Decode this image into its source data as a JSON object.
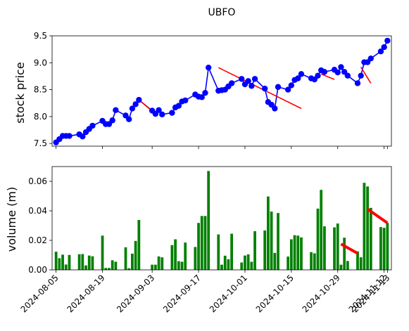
{
  "chart_data": [
    {
      "type": "line",
      "title": "UBFO",
      "ylabel": "stock price",
      "ylabel_color": "#0000ff",
      "ylim": [
        7.45,
        9.5
      ],
      "yticks": [
        7.5,
        8.0,
        8.5,
        9.0,
        9.5
      ],
      "ytick_labels": [
        "7.5",
        "8.0",
        "8.5",
        "9.0",
        "9.5"
      ],
      "grid": false,
      "x": [
        "2024-08-05",
        "2024-08-06",
        "2024-08-07",
        "2024-08-08",
        "2024-08-09",
        "2024-08-12",
        "2024-08-13",
        "2024-08-14",
        "2024-08-15",
        "2024-08-16",
        "2024-08-19",
        "2024-08-20",
        "2024-08-21",
        "2024-08-22",
        "2024-08-23",
        "2024-08-26",
        "2024-08-27",
        "2024-08-28",
        "2024-08-29",
        "2024-08-30",
        "2024-09-03",
        "2024-09-04",
        "2024-09-05",
        "2024-09-06",
        "2024-09-09",
        "2024-09-10",
        "2024-09-11",
        "2024-09-12",
        "2024-09-13",
        "2024-09-16",
        "2024-09-17",
        "2024-09-18",
        "2024-09-19",
        "2024-09-20",
        "2024-09-23",
        "2024-09-24",
        "2024-09-25",
        "2024-09-26",
        "2024-09-27",
        "2024-09-30",
        "2024-10-01",
        "2024-10-02",
        "2024-10-03",
        "2024-10-04",
        "2024-10-07",
        "2024-10-08",
        "2024-10-09",
        "2024-10-10",
        "2024-10-11",
        "2024-10-14",
        "2024-10-15",
        "2024-10-16",
        "2024-10-17",
        "2024-10-18",
        "2024-10-21",
        "2024-10-22",
        "2024-10-23",
        "2024-10-24",
        "2024-10-25",
        "2024-10-28",
        "2024-10-29",
        "2024-10-30",
        "2024-10-31",
        "2024-11-01",
        "2024-11-04",
        "2024-11-05",
        "2024-11-06",
        "2024-11-07",
        "2024-11-08",
        "2024-11-11",
        "2024-11-12",
        "2024-11-13"
      ],
      "series": [
        {
          "color": "#0000ff",
          "marker": "circle",
          "values": [
            7.52,
            7.58,
            7.64,
            7.64,
            7.64,
            7.67,
            7.63,
            7.71,
            7.77,
            7.83,
            7.92,
            7.86,
            7.86,
            7.93,
            8.12,
            8.02,
            7.95,
            8.15,
            8.23,
            8.31,
            8.11,
            8.05,
            8.12,
            8.04,
            8.07,
            8.17,
            8.2,
            8.28,
            8.3,
            8.41,
            8.37,
            8.36,
            8.44,
            8.91,
            8.48,
            8.49,
            8.5,
            8.56,
            8.62,
            8.7,
            8.6,
            8.66,
            8.57,
            8.7,
            8.52,
            8.27,
            8.22,
            8.15,
            8.55,
            8.5,
            8.58,
            8.68,
            8.71,
            8.79,
            8.71,
            8.69,
            8.76,
            8.86,
            8.83,
            8.87,
            8.82,
            8.92,
            8.83,
            8.76,
            8.62,
            8.76,
            9.01,
            9.01,
            9.08,
            9.21,
            9.29,
            9.41
          ]
        }
      ],
      "trend_lines": [
        {
          "color": "#ff0000",
          "from": [
            "2024-08-30",
            8.31
          ],
          "to": [
            "2024-09-04",
            8.05
          ]
        },
        {
          "color": "#ff0000",
          "from": [
            "2024-09-23",
            8.91
          ],
          "to": [
            "2024-10-18",
            8.15
          ]
        },
        {
          "color": "#ff0000",
          "from": [
            "2024-10-24",
            8.79
          ],
          "to": [
            "2024-10-28",
            8.69
          ]
        },
        {
          "color": "#ff0000",
          "from": [
            "2024-11-05",
            8.92
          ],
          "to": [
            "2024-11-08",
            8.62
          ]
        }
      ]
    },
    {
      "type": "bar",
      "ylabel": "volume (m)",
      "ylabel_color": "#008000",
      "ylim": [
        0,
        0.07
      ],
      "yticks": [
        0.0,
        0.02,
        0.04,
        0.06
      ],
      "ytick_labels": [
        "0.00",
        "0.02",
        "0.04",
        "0.06"
      ],
      "grid": false,
      "bar_color": "#008000",
      "x": [
        "2024-08-05",
        "2024-08-06",
        "2024-08-07",
        "2024-08-08",
        "2024-08-09",
        "2024-08-12",
        "2024-08-13",
        "2024-08-14",
        "2024-08-15",
        "2024-08-16",
        "2024-08-19",
        "2024-08-20",
        "2024-08-21",
        "2024-08-22",
        "2024-08-23",
        "2024-08-26",
        "2024-08-27",
        "2024-08-28",
        "2024-08-29",
        "2024-08-30",
        "2024-09-03",
        "2024-09-04",
        "2024-09-05",
        "2024-09-06",
        "2024-09-09",
        "2024-09-10",
        "2024-09-11",
        "2024-09-12",
        "2024-09-13",
        "2024-09-16",
        "2024-09-17",
        "2024-09-18",
        "2024-09-19",
        "2024-09-20",
        "2024-09-23",
        "2024-09-24",
        "2024-09-25",
        "2024-09-26",
        "2024-09-27",
        "2024-09-30",
        "2024-10-01",
        "2024-10-02",
        "2024-10-03",
        "2024-10-04",
        "2024-10-07",
        "2024-10-08",
        "2024-10-09",
        "2024-10-10",
        "2024-10-11",
        "2024-10-14",
        "2024-10-15",
        "2024-10-16",
        "2024-10-17",
        "2024-10-18",
        "2024-10-21",
        "2024-10-22",
        "2024-10-23",
        "2024-10-24",
        "2024-10-25",
        "2024-10-28",
        "2024-10-29",
        "2024-10-30",
        "2024-10-31",
        "2024-11-01",
        "2024-11-04",
        "2024-11-05",
        "2024-11-06",
        "2024-11-07",
        "2024-11-08",
        "2024-11-11",
        "2024-11-12",
        "2024-11-13"
      ],
      "values": [
        0.0123,
        0.0079,
        0.0103,
        0.0036,
        0.0101,
        0.0106,
        0.0107,
        0.003,
        0.0097,
        0.0092,
        0.0232,
        0.0013,
        0.0013,
        0.0065,
        0.0055,
        0.0153,
        0.0011,
        0.011,
        0.0196,
        0.0338,
        0.0035,
        0.0035,
        0.0091,
        0.0085,
        0.0168,
        0.0207,
        0.0059,
        0.0055,
        0.0185,
        0.0155,
        0.0318,
        0.0365,
        0.0365,
        0.067,
        0.024,
        0.0035,
        0.0096,
        0.0072,
        0.0245,
        0.005,
        0.0097,
        0.0105,
        0.0055,
        0.0262,
        0.0267,
        0.0497,
        0.0395,
        0.0115,
        0.0385,
        0.009,
        0.0207,
        0.0235,
        0.0232,
        0.022,
        0.012,
        0.0112,
        0.0415,
        0.0542,
        0.0295,
        0.0288,
        0.0314,
        0.0035,
        0.0218,
        0.006,
        0.0125,
        0.0085,
        0.059,
        0.0565,
        0.042,
        0.029,
        0.0285,
        0.0318
      ],
      "trend_lines": [
        {
          "color": "#ff0000",
          "from": [
            "2024-10-30",
            0.0175
          ],
          "to": [
            "2024-11-04",
            0.0112
          ]
        },
        {
          "color": "#ff0000",
          "from": [
            "2024-11-07",
            0.0412
          ],
          "to": [
            "2024-11-13",
            0.0318
          ]
        }
      ]
    }
  ],
  "x_axis": {
    "ticks": [
      "2024-08-05",
      "2024-08-19",
      "2024-09-03",
      "2024-09-17",
      "2024-10-01",
      "2024-10-15",
      "2024-10-29",
      "2024-11-12",
      "2024-11-13"
    ],
    "tick_labels": [
      "2024-08-05",
      "2024-08-19",
      "2024-09-03",
      "2024-09-17",
      "2024-10-01",
      "2024-10-15",
      "2024-10-29",
      "2024-11-12",
      "2024-11-13"
    ],
    "label_rotation_deg": 45
  }
}
